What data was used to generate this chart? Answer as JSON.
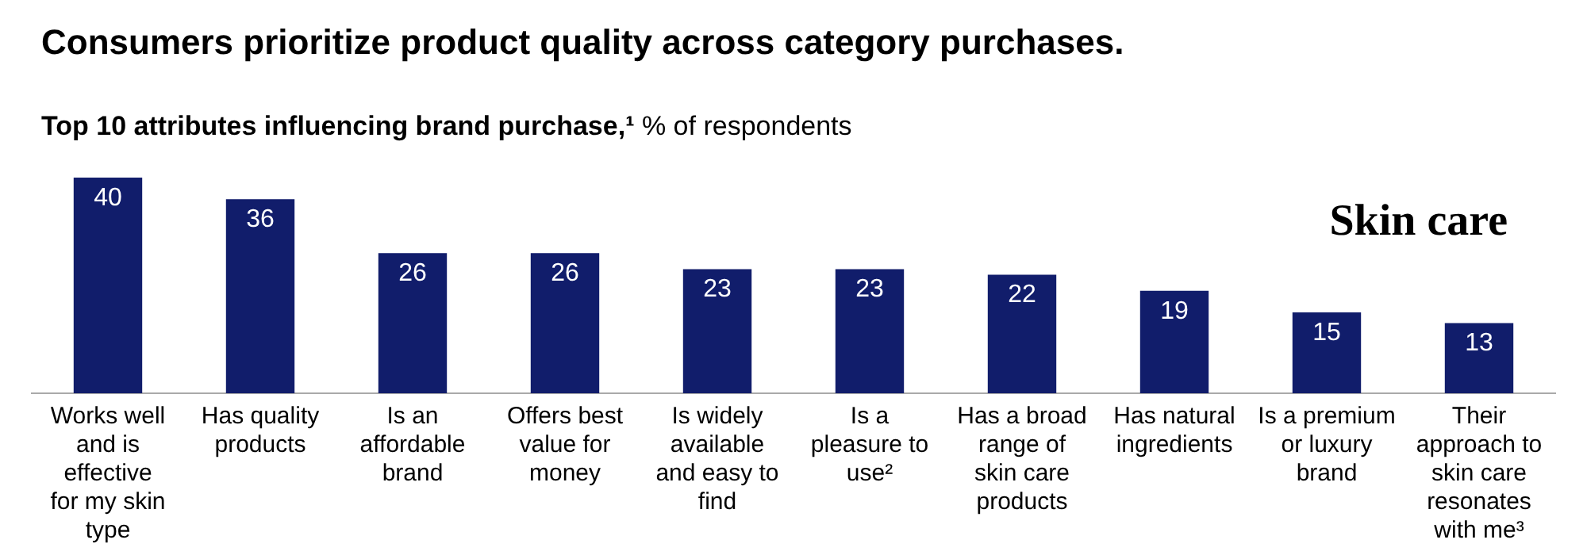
{
  "chart_data": {
    "type": "bar",
    "title": "Consumers prioritize product quality across category purchases.",
    "subtitle": "Top 10 attributes influencing brand purchase,¹",
    "ylabel": "% of respondents",
    "annotations": [
      "Skin care"
    ],
    "categories": [
      "Works well and is effective for my skin type",
      "Has quality products",
      "Is an affordable brand",
      "Offers best value for money",
      "Is widely available and easy to find",
      "Is a pleasure to use²",
      "Has a broad range of skin care products",
      "Has natural ingredients",
      "Is a premium or luxury brand",
      "Their approach to skin care resonates with me³"
    ],
    "values": [
      40,
      36,
      26,
      26,
      23,
      23,
      22,
      19,
      15,
      13
    ],
    "color": "#111d6b",
    "data_labels": true,
    "legend": false,
    "grid": false
  }
}
